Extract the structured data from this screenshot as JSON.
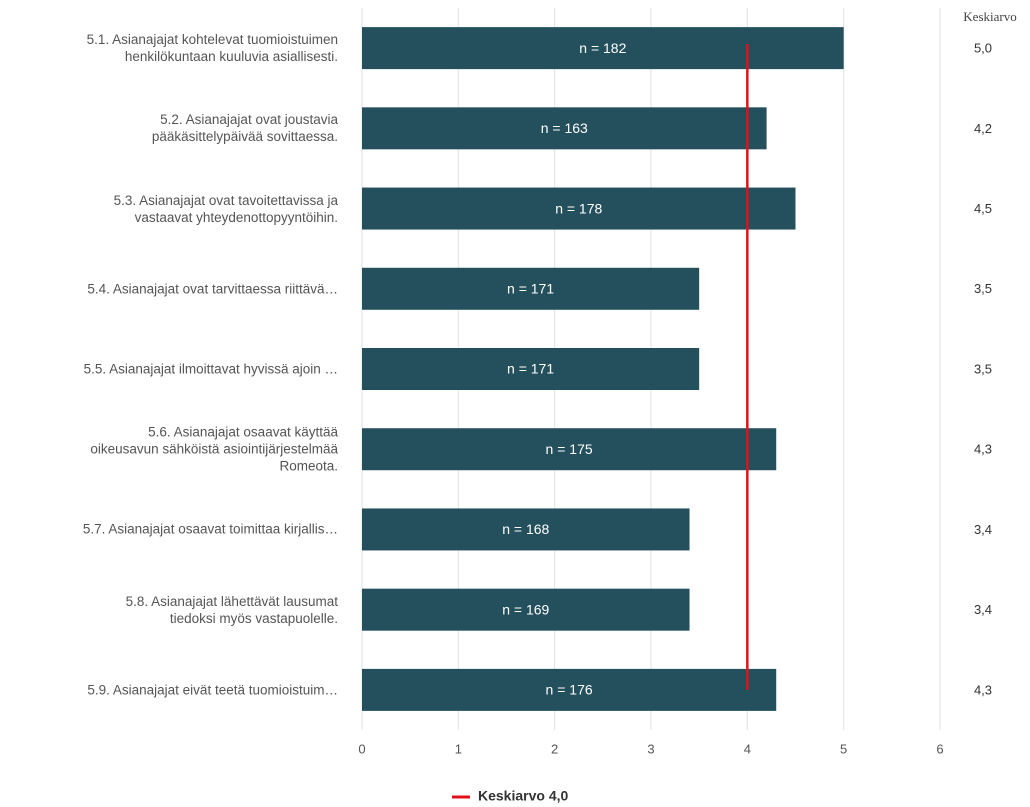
{
  "chart_data": {
    "type": "bar",
    "orientation": "horizontal",
    "categories": [
      "5.1. Asianajajat kohtelevat tuomioistuimen\nhenkilökuntaan kuuluvia asiallisesti.",
      "5.2. Asianajajat ovat joustavia\npääkäsittelypäivää sovittaessa.",
      "5.3. Asianajajat ovat tavoitettavissa ja\nvastaavat yhteydenottopyyntöihin.",
      "5.4. Asianajajat ovat tarvittaessa riittävä…",
      "5.5. Asianajajat ilmoittavat hyvissä ajoin …",
      "5.6. Asianajajat osaavat käyttää\noikeusavun sähköistä asiointijärjestelmää\nRomeota.",
      "5.7. Asianajajat osaavat toimittaa kirjallis…",
      "5.8. Asianajajat lähettävät lausumat\ntiedoksi myös vastapuolelle.",
      "5.9. Asianajajat eivät teetä tuomioistuim…"
    ],
    "values": [
      5.0,
      4.2,
      4.5,
      3.5,
      3.5,
      4.3,
      3.4,
      3.4,
      4.3
    ],
    "value_labels": [
      "5,0",
      "4,2",
      "4,5",
      "3,5",
      "3,5",
      "4,3",
      "3,4",
      "3,4",
      "4,3"
    ],
    "value_column_title": "Keskiarvo",
    "n_labels": [
      "n = 182",
      "n = 163",
      "n = 178",
      "n = 171",
      "n = 171",
      "n = 175",
      "n = 168",
      "n = 169",
      "n = 176"
    ],
    "color": "#24505e",
    "xlim": [
      0,
      6
    ],
    "xticks": [
      0,
      1,
      2,
      3,
      4,
      5,
      6
    ],
    "grid": true,
    "reference_line": {
      "value": 4.0,
      "label": "Keskiarvo 4,0",
      "color": "#e3101a"
    },
    "legend": "bottom"
  }
}
